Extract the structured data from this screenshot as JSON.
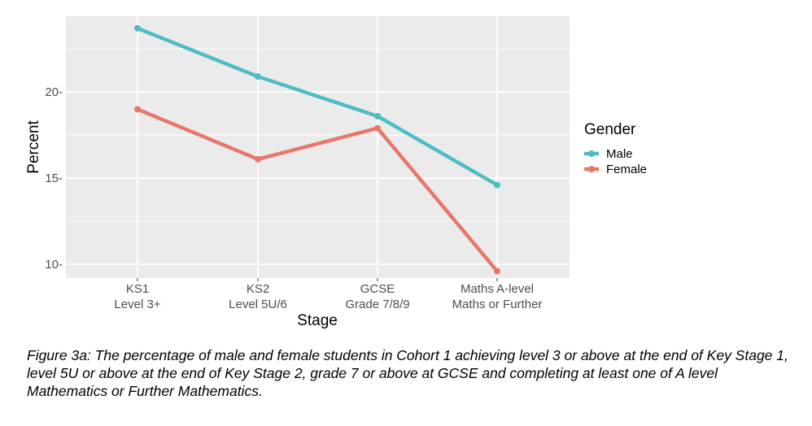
{
  "chart_data": {
    "type": "line",
    "categories": [
      [
        "KS1",
        "Level 3+"
      ],
      [
        "KS2",
        "Level 5U/6"
      ],
      [
        "GCSE",
        "Grade 7/8/9"
      ],
      [
        "Maths A-level",
        "Maths or Further"
      ]
    ],
    "series": [
      {
        "name": "Male",
        "values": [
          23.7,
          20.9,
          18.6,
          14.6
        ],
        "color": "#4fbcc4"
      },
      {
        "name": "Female",
        "values": [
          19.0,
          16.1,
          17.9,
          9.6
        ],
        "color": "#e8766b"
      }
    ],
    "xlabel": "Stage",
    "ylabel": "Percent",
    "ylim": [
      9.2,
      24.4
    ],
    "yticks": [
      10,
      15,
      20
    ],
    "ytick_labels": [
      "10-",
      "15-",
      "20-"
    ],
    "legend_title": "Gender",
    "legend_position": "right",
    "grid": true
  },
  "caption": "Figure 3a: The percentage of male and female students in Cohort 1 achieving level 3 or above at the end of Key Stage 1, level 5U or above at the end of Key Stage 2, grade 7 or above at GCSE and completing at least one of A level Mathematics or Further Mathematics."
}
